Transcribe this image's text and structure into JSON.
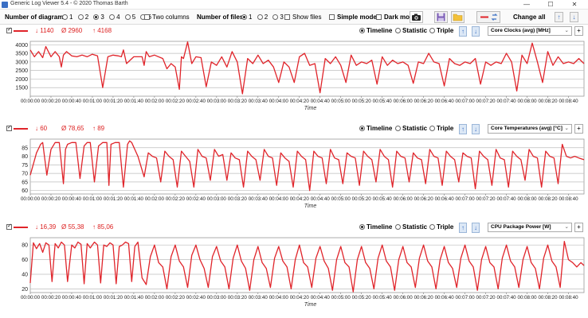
{
  "window": {
    "title": "Generic Log Viewer 5.4 - © 2020 Thomas Barth",
    "minimize": "—",
    "maximize": "☐",
    "close": "✕"
  },
  "toolbar": {
    "num_diagrams_label": "Number of diagrams",
    "diagram_options": [
      "1",
      "2",
      "3",
      "4",
      "5",
      "6"
    ],
    "diagram_selected": "3",
    "two_columns_label": "Two columns",
    "num_files_label": "Number of files",
    "file_options": [
      "1",
      "2",
      "3"
    ],
    "file_selected": "1",
    "show_files_label": "Show files",
    "simple_mode_label": "Simple mode",
    "dark_mode_label": "Dark mod",
    "change_all_label": "Change all",
    "accent": "#e0242a"
  },
  "panels": [
    {
      "min": "↓ 1140",
      "avg": "Ø 2960",
      "max": "↑ 4168",
      "modes": [
        "Timeline",
        "Statistic",
        "Triple"
      ],
      "selected_mode": "Timeline",
      "metric": "Core Clocks (avg) [MHz]",
      "axis_title": "Time"
    },
    {
      "min": "↓ 60",
      "avg": "Ø 78,65",
      "max": "↑ 89",
      "modes": [
        "Timeline",
        "Statistic",
        "Triple"
      ],
      "selected_mode": "Timeline",
      "metric": "Core Temperatures (avg) [°C]",
      "axis_title": "Time"
    },
    {
      "min": "↓ 16,39",
      "avg": "Ø 55,38",
      "max": "↑ 85,06",
      "modes": [
        "Timeline",
        "Statistic",
        "Triple"
      ],
      "selected_mode": "Timeline",
      "metric": "CPU Package Power [W]",
      "axis_title": "Time"
    }
  ],
  "time_ticks": [
    "00:00:00",
    "00:00:20",
    "00:00:40",
    "00:01:00",
    "00:01:20",
    "00:01:40",
    "00:02:00",
    "00:02:20",
    "00:02:40",
    "00:03:00",
    "00:03:20",
    "00:03:40",
    "00:04:00",
    "00:04:20",
    "00:04:40",
    "00:05:00",
    "00:05:20",
    "00:05:40",
    "00:06:00",
    "00:06:20",
    "00:06:40",
    "00:07:00",
    "00:07:20",
    "00:07:40",
    "00:08:00",
    "00:08:20",
    "00:08:40"
  ],
  "chart_data": [
    {
      "type": "line",
      "title": "Core Clocks (avg) [MHz]",
      "xlabel": "Time",
      "ylabel": "",
      "ylim": [
        1000,
        4200
      ],
      "yticks": [
        "1500",
        "2000",
        "2500",
        "3000",
        "3500",
        "4000"
      ],
      "x_range_seconds": [
        0,
        535
      ],
      "series": [
        {
          "color": "#e0242a",
          "x": [
            0,
            4,
            8,
            12,
            15,
            20,
            24,
            28,
            30,
            32,
            35,
            40,
            45,
            50,
            55,
            60,
            65,
            70,
            75,
            80,
            85,
            88,
            90,
            93,
            100,
            108,
            110,
            112,
            115,
            120,
            128,
            132,
            136,
            140,
            144,
            146,
            148,
            152,
            156,
            160,
            165,
            170,
            175,
            180,
            185,
            190,
            195,
            200,
            205,
            210,
            215,
            220,
            225,
            230,
            235,
            240,
            245,
            250,
            255,
            260,
            265,
            270,
            275,
            280,
            285,
            290,
            295,
            300,
            305,
            310,
            315,
            320,
            325,
            330,
            335,
            340,
            345,
            350,
            355,
            360,
            365,
            370,
            375,
            380,
            385,
            390,
            395,
            400,
            405,
            410,
            415,
            420,
            425,
            430,
            435,
            440,
            445,
            450,
            455,
            460,
            465,
            470,
            475,
            480,
            485,
            490,
            495,
            500,
            505,
            510,
            515,
            520,
            525,
            530,
            535
          ],
          "y": [
            3700,
            3300,
            3600,
            3250,
            3900,
            3300,
            3600,
            3300,
            2700,
            3400,
            3600,
            3350,
            3300,
            3400,
            3300,
            3450,
            3350,
            1500,
            3300,
            3400,
            3350,
            3300,
            3700,
            2900,
            3300,
            3300,
            2800,
            3600,
            3300,
            3400,
            3200,
            2600,
            2900,
            2700,
            1400,
            3300,
            3200,
            4168,
            2900,
            3300,
            3250,
            1550,
            3000,
            2800,
            3300,
            2700,
            3600,
            3000,
            1140,
            3200,
            2900,
            3400,
            2900,
            3100,
            2700,
            1800,
            3000,
            2700,
            1800,
            3300,
            3500,
            2800,
            2900,
            1200,
            3200,
            2900,
            3300,
            2800,
            1800,
            3400,
            2800,
            3000,
            2900,
            3100,
            1700,
            3300,
            2800,
            3100,
            2900,
            3000,
            2800,
            1750,
            3000,
            2900,
            3500,
            3000,
            2900,
            1600,
            3200,
            2900,
            2800,
            3000,
            2900,
            3200,
            1700,
            3000,
            2800,
            3000,
            2900,
            3500,
            3000,
            1300,
            3400,
            2900,
            4100,
            3000,
            1800,
            3600,
            2800,
            3300,
            2900,
            3000,
            2900,
            3200,
            2900
          ]
        }
      ]
    },
    {
      "type": "line",
      "title": "Core Temperatures (avg) [°C]",
      "xlabel": "Time",
      "ylabel": "",
      "ylim": [
        58,
        90
      ],
      "yticks": [
        "60",
        "65",
        "70",
        "75",
        "80",
        "85"
      ],
      "x_range_seconds": [
        0,
        535
      ],
      "series": [
        {
          "color": "#e0242a",
          "x": [
            0,
            6,
            10,
            12,
            16,
            20,
            24,
            28,
            32,
            34,
            36,
            40,
            44,
            48,
            52,
            55,
            58,
            62,
            66,
            70,
            74,
            76,
            78,
            82,
            86,
            90,
            94,
            96,
            98,
            104,
            110,
            114,
            118,
            122,
            126,
            130,
            134,
            138,
            142,
            146,
            150,
            154,
            158,
            162,
            166,
            170,
            174,
            178,
            182,
            186,
            190,
            194,
            198,
            202,
            206,
            210,
            214,
            218,
            222,
            226,
            230,
            234,
            238,
            242,
            246,
            250,
            254,
            258,
            262,
            266,
            270,
            274,
            278,
            282,
            286,
            290,
            294,
            298,
            302,
            306,
            310,
            314,
            318,
            322,
            326,
            330,
            334,
            338,
            342,
            346,
            350,
            354,
            358,
            362,
            366,
            370,
            374,
            378,
            382,
            386,
            390,
            394,
            398,
            402,
            406,
            410,
            414,
            418,
            422,
            426,
            430,
            434,
            438,
            442,
            446,
            450,
            454,
            458,
            462,
            466,
            470,
            474,
            478,
            482,
            486,
            490,
            494,
            498,
            502,
            506,
            510,
            514,
            518,
            522,
            526,
            530,
            535
          ],
          "y": [
            69,
            82,
            87,
            88,
            69,
            84,
            88,
            88,
            64,
            84,
            87,
            88,
            88,
            67,
            86,
            88,
            88,
            65,
            86,
            88,
            88,
            63,
            87,
            88,
            88,
            62,
            87,
            89,
            88,
            80,
            68,
            82,
            80,
            79,
            65,
            83,
            80,
            78,
            62,
            83,
            80,
            77,
            62,
            84,
            80,
            79,
            66,
            84,
            80,
            81,
            66,
            82,
            79,
            78,
            62,
            83,
            80,
            78,
            66,
            84,
            80,
            79,
            63,
            82,
            79,
            77,
            62,
            83,
            80,
            78,
            60,
            83,
            80,
            79,
            64,
            84,
            79,
            78,
            64,
            82,
            80,
            79,
            63,
            83,
            80,
            78,
            65,
            84,
            80,
            78,
            62,
            83,
            80,
            79,
            65,
            82,
            79,
            78,
            64,
            84,
            80,
            79,
            63,
            83,
            80,
            78,
            65,
            82,
            80,
            79,
            61,
            83,
            80,
            78,
            63,
            84,
            79,
            78,
            62,
            83,
            80,
            78,
            66,
            84,
            80,
            79,
            62,
            83,
            80,
            79,
            64,
            87,
            80,
            79,
            80,
            79,
            78
          ]
        }
      ]
    },
    {
      "type": "line",
      "title": "CPU Package Power [W]",
      "xlabel": "Time",
      "ylabel": "",
      "ylim": [
        15,
        90
      ],
      "yticks": [
        "20",
        "40",
        "60",
        "80"
      ],
      "x_range_seconds": [
        0,
        535
      ],
      "series": [
        {
          "color": "#e0242a",
          "x": [
            0,
            3,
            6,
            9,
            12,
            15,
            18,
            21,
            24,
            27,
            30,
            33,
            36,
            40,
            43,
            46,
            49,
            52,
            55,
            58,
            62,
            65,
            68,
            71,
            74,
            77,
            80,
            83,
            86,
            89,
            92,
            95,
            98,
            101,
            104,
            108,
            112,
            116,
            120,
            124,
            128,
            132,
            136,
            140,
            144,
            148,
            152,
            156,
            160,
            164,
            168,
            172,
            176,
            180,
            184,
            188,
            192,
            196,
            200,
            204,
            208,
            212,
            216,
            220,
            224,
            228,
            232,
            236,
            240,
            244,
            248,
            252,
            256,
            260,
            264,
            268,
            272,
            276,
            280,
            284,
            288,
            292,
            296,
            300,
            304,
            308,
            312,
            316,
            320,
            324,
            328,
            332,
            336,
            340,
            344,
            348,
            352,
            356,
            360,
            364,
            368,
            372,
            376,
            380,
            384,
            388,
            392,
            396,
            400,
            404,
            408,
            412,
            416,
            420,
            424,
            428,
            432,
            436,
            440,
            444,
            448,
            452,
            456,
            460,
            464,
            468,
            472,
            476,
            480,
            484,
            488,
            492,
            496,
            500,
            504,
            508,
            512,
            516,
            520,
            524,
            528,
            532,
            535
          ],
          "y": [
            28,
            83,
            75,
            82,
            70,
            83,
            80,
            30,
            82,
            76,
            84,
            80,
            30,
            80,
            76,
            84,
            81,
            27,
            82,
            76,
            84,
            80,
            28,
            80,
            78,
            83,
            80,
            27,
            78,
            80,
            84,
            82,
            30,
            78,
            84,
            35,
            26,
            64,
            80,
            56,
            50,
            20,
            64,
            80,
            58,
            50,
            22,
            66,
            80,
            60,
            48,
            22,
            64,
            78,
            58,
            50,
            20,
            62,
            80,
            58,
            48,
            18,
            60,
            78,
            56,
            48,
            22,
            62,
            78,
            58,
            50,
            20,
            60,
            80,
            56,
            50,
            22,
            62,
            78,
            58,
            48,
            18,
            60,
            78,
            56,
            50,
            16,
            60,
            78,
            56,
            48,
            20,
            62,
            80,
            58,
            50,
            18,
            60,
            78,
            56,
            50,
            22,
            62,
            80,
            58,
            50,
            20,
            60,
            78,
            56,
            48,
            22,
            62,
            80,
            58,
            50,
            18,
            60,
            78,
            56,
            50,
            20,
            62,
            80,
            58,
            50,
            22,
            60,
            78,
            56,
            48,
            20,
            62,
            80,
            58,
            50,
            22,
            85,
            60,
            56,
            50,
            56,
            52
          ]
        }
      ]
    }
  ]
}
